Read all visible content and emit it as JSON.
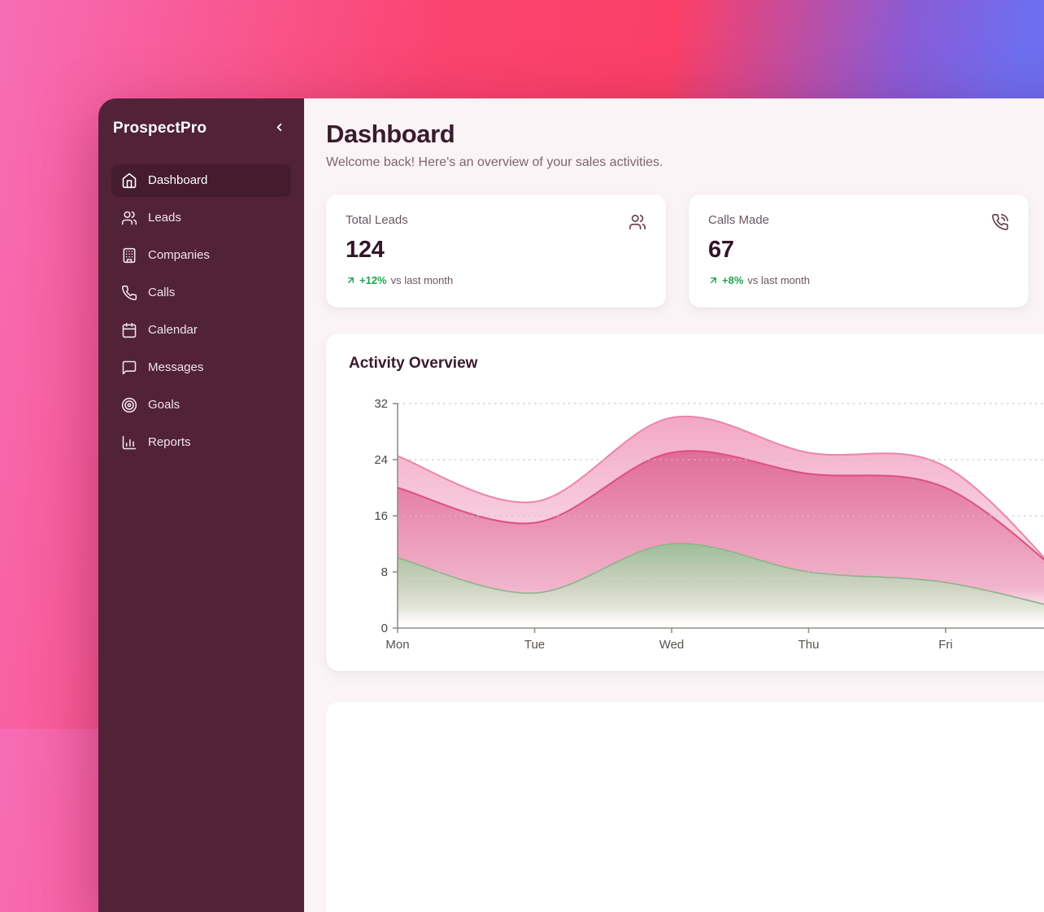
{
  "sidebar": {
    "brand": "ProspectPro",
    "collapse_icon": "chevron-left",
    "items": [
      {
        "label": "Dashboard",
        "icon": "home",
        "active": true
      },
      {
        "label": "Leads",
        "icon": "users",
        "active": false
      },
      {
        "label": "Companies",
        "icon": "building",
        "active": false
      },
      {
        "label": "Calls",
        "icon": "phone",
        "active": false
      },
      {
        "label": "Calendar",
        "icon": "calendar",
        "active": false
      },
      {
        "label": "Messages",
        "icon": "message-square",
        "active": false
      },
      {
        "label": "Goals",
        "icon": "target",
        "active": false
      },
      {
        "label": "Reports",
        "icon": "bar-chart",
        "active": false
      }
    ]
  },
  "header": {
    "title": "Dashboard",
    "subtitle": "Welcome back! Here's an overview of your sales activities."
  },
  "stats": [
    {
      "label": "Total Leads",
      "value": "124",
      "icon": "users",
      "trend_pct": "+12%",
      "trend_suffix": "vs last month"
    },
    {
      "label": "Calls Made",
      "value": "67",
      "icon": "phone-call",
      "trend_pct": "+8%",
      "trend_suffix": "vs last month"
    }
  ],
  "chart_card": {
    "title": "Activity Overview"
  },
  "chart_data": {
    "type": "area",
    "title": "Activity Overview",
    "categories": [
      "Mon",
      "Tue",
      "Wed",
      "Thu",
      "Fri"
    ],
    "offscreen_points_per_series": 1,
    "y_ticks": [
      0,
      8,
      16,
      24,
      32
    ],
    "ylim": [
      0,
      32
    ],
    "grid": "dashed-horizontal",
    "legend": "none",
    "series": [
      {
        "name": "outer-light-pink-band",
        "color": "#ee84a8",
        "fill_top": "#f2a5c3",
        "fill_mid": "#f9d9e6",
        "values": [
          24.5,
          18,
          30,
          25,
          23,
          4
        ]
      },
      {
        "name": "middle-dark-pink-band",
        "color": "#dd4f7e",
        "fill_top": "#e06b95",
        "fill_mid": "#efa9c4",
        "values": [
          20,
          15,
          25,
          22,
          20,
          5
        ]
      },
      {
        "name": "bottom-green-band",
        "color": "#8bb489",
        "fill_top": "#9cbf98",
        "fill_mid": "#dfe6d6",
        "values": [
          10,
          5,
          12,
          8,
          6.5,
          2
        ]
      }
    ]
  },
  "colors": {
    "sidebar_bg": "#522238",
    "sidebar_active_bg": "#441c2e",
    "main_bg": "#faf4f6",
    "heading": "#3a1b2b",
    "muted_text": "#6d5562",
    "trend_green": "#1fa24f",
    "axis": "#948d87",
    "bg_gradient": [
      "#f76db6",
      "#fb3f67",
      "#6e6ef0"
    ]
  }
}
